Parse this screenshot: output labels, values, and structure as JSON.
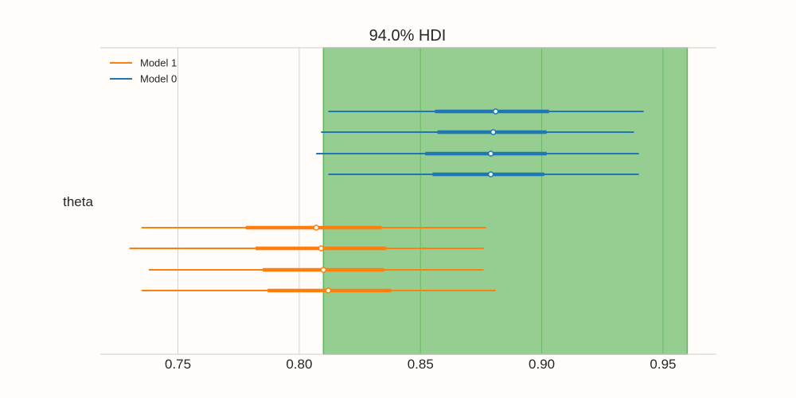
{
  "chart_data": {
    "type": "forest",
    "title": "94.0% HDI",
    "ylabel": "theta",
    "xlim": [
      0.718,
      0.972
    ],
    "x_ticks": [
      0.75,
      0.8,
      0.85,
      0.9,
      0.95
    ],
    "x_tick_labels": [
      "0.75",
      "0.80",
      "0.85",
      "0.90",
      "0.95"
    ],
    "grid": "vertical",
    "legend_position": "top-left",
    "legend": [
      "Model 1",
      "Model 0"
    ],
    "hdi_band": {
      "start": 0.81,
      "end": 0.96,
      "color": "#96cd90"
    },
    "series": [
      {
        "name": "Model 0",
        "color": "#1f77b4",
        "intervals": [
          {
            "low": 0.812,
            "q1": 0.856,
            "median": 0.881,
            "q3": 0.903,
            "high": 0.942
          },
          {
            "low": 0.809,
            "q1": 0.857,
            "median": 0.88,
            "q3": 0.902,
            "high": 0.938
          },
          {
            "low": 0.807,
            "q1": 0.852,
            "median": 0.879,
            "q3": 0.902,
            "high": 0.94
          },
          {
            "low": 0.812,
            "q1": 0.855,
            "median": 0.879,
            "q3": 0.901,
            "high": 0.94
          }
        ]
      },
      {
        "name": "Model 1",
        "color": "#ff7f0e",
        "intervals": [
          {
            "low": 0.735,
            "q1": 0.778,
            "median": 0.807,
            "q3": 0.834,
            "high": 0.877
          },
          {
            "low": 0.73,
            "q1": 0.782,
            "median": 0.809,
            "q3": 0.836,
            "high": 0.876
          },
          {
            "low": 0.738,
            "q1": 0.785,
            "median": 0.81,
            "q3": 0.835,
            "high": 0.876
          },
          {
            "low": 0.735,
            "q1": 0.787,
            "median": 0.812,
            "q3": 0.838,
            "high": 0.881
          }
        ]
      }
    ]
  }
}
